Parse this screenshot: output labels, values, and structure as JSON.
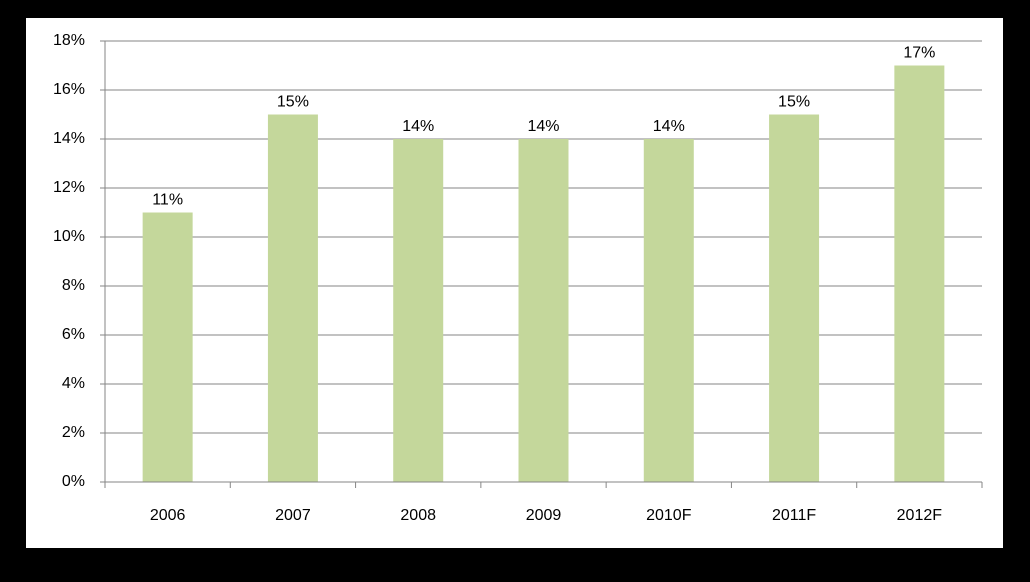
{
  "chart_data": {
    "type": "bar",
    "categories": [
      "2006",
      "2007",
      "2008",
      "2009",
      "2010F",
      "2011F",
      "2012F"
    ],
    "values": [
      11,
      15,
      14,
      14,
      14,
      15,
      17
    ],
    "value_labels": [
      "11%",
      "15%",
      "14%",
      "14%",
      "14%",
      "15%",
      "17%"
    ],
    "color": "#c4d79b",
    "ylim": [
      0,
      18
    ],
    "yticks": [
      {
        "value": 0,
        "label": "0%"
      },
      {
        "value": 2,
        "label": "2%"
      },
      {
        "value": 4,
        "label": "4%"
      },
      {
        "value": 6,
        "label": "6%"
      },
      {
        "value": 8,
        "label": "8%"
      },
      {
        "value": 10,
        "label": "10%"
      },
      {
        "value": 12,
        "label": "12%"
      },
      {
        "value": 14,
        "label": "14%"
      },
      {
        "value": 16,
        "label": "16%"
      },
      {
        "value": 18,
        "label": "18%"
      }
    ],
    "grid": true
  }
}
